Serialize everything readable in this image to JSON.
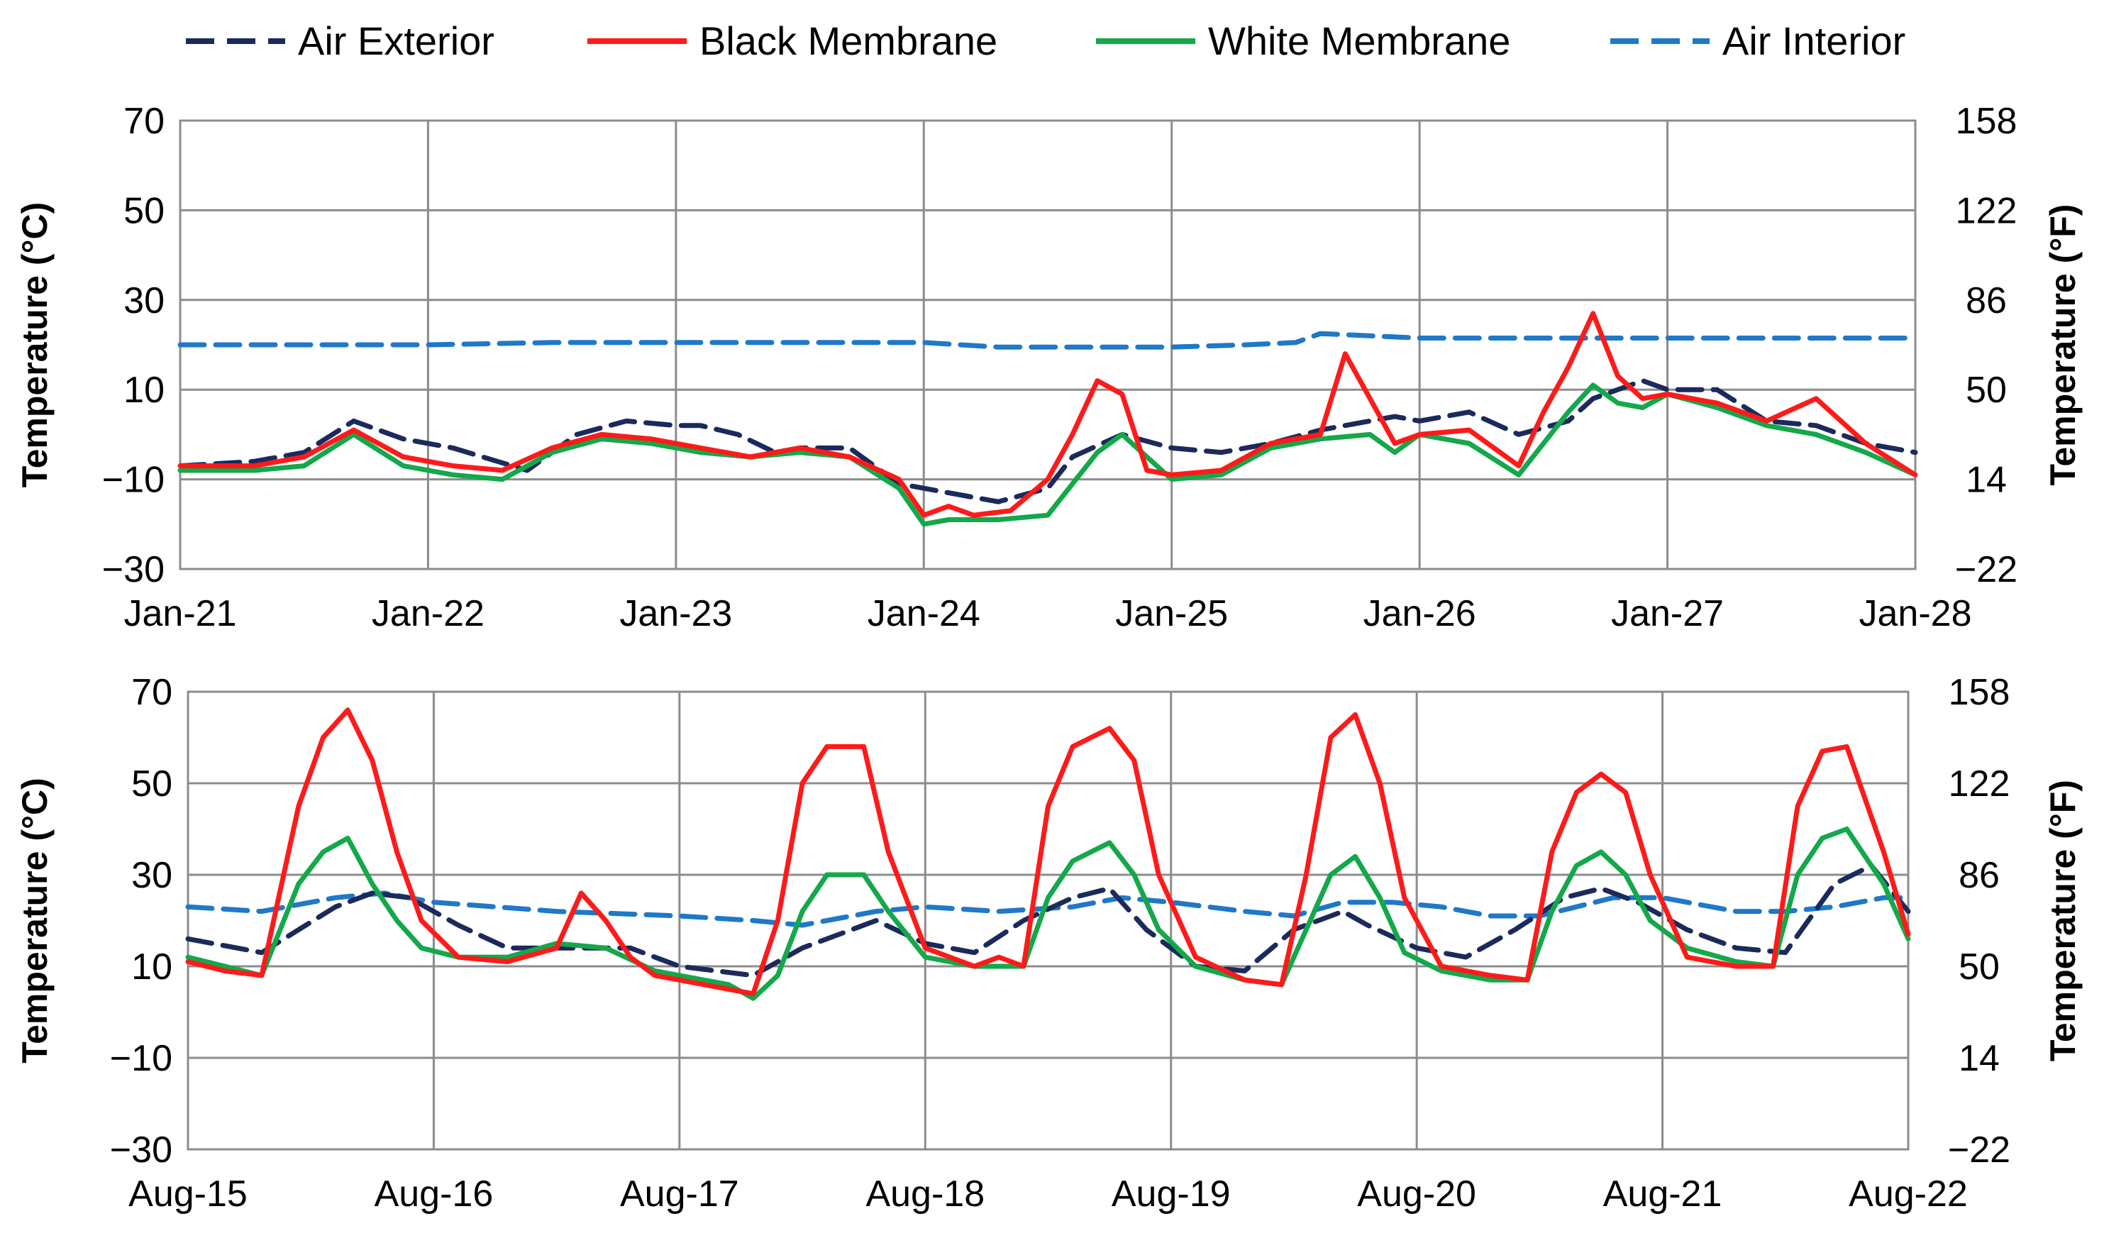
{
  "colors": {
    "air_exterior": "#1b2a5c",
    "black_membrane": "#ff1a1a",
    "white_membrane": "#14a84b",
    "air_interior": "#1f78c8",
    "grid": "#8c8c8c"
  },
  "legend": [
    {
      "name": "Air Exterior",
      "key": "air_exterior",
      "style": "dashed"
    },
    {
      "name": "Black Membrane",
      "key": "black_membrane",
      "style": "solid"
    },
    {
      "name": "White Membrane",
      "key": "white_membrane",
      "style": "solid"
    },
    {
      "name": "Air Interior",
      "key": "air_interior",
      "style": "dashed"
    }
  ],
  "chart_data": [
    {
      "type": "line",
      "title": "",
      "ylabel": "Temperature (°C)",
      "ylabel_right": "Temperature (°F)",
      "ylim": [
        -30,
        70
      ],
      "yticks": [
        "70",
        "50",
        "30",
        "10",
        "−10",
        "−30"
      ],
      "yticks_right": [
        "158",
        "122",
        "86",
        "50",
        "14",
        "−22"
      ],
      "xlim": [
        0,
        7
      ],
      "xticks": [
        "Jan-21",
        "Jan-22",
        "Jan-23",
        "Jan-24",
        "Jan-25",
        "Jan-26",
        "Jan-27",
        "Jan-28"
      ],
      "series": [
        {
          "name": "Air Exterior",
          "key": "air_exterior",
          "x": [
            0,
            0.3,
            0.5,
            0.7,
            0.9,
            1.1,
            1.4,
            1.6,
            1.8,
            2.0,
            2.1,
            2.25,
            2.4,
            2.5,
            2.7,
            2.9,
            3.0,
            3.1,
            3.3,
            3.5,
            3.6,
            3.8,
            4.0,
            4.2,
            4.4,
            4.6,
            4.8,
            4.9,
            5.0,
            5.2,
            5.4,
            5.6,
            5.7,
            5.9,
            6.0,
            6.2,
            6.4,
            6.6,
            6.8,
            7.0
          ],
          "y": [
            -7,
            -6,
            -4,
            3,
            -1,
            -3,
            -8,
            0,
            3,
            2,
            2,
            0,
            -4,
            -3,
            -3,
            -11,
            -12,
            -13,
            -15,
            -12,
            -5,
            0,
            -3,
            -4,
            -2,
            1,
            3,
            4,
            3,
            5,
            0,
            3,
            8,
            12,
            10,
            10,
            3,
            2,
            -2,
            -4
          ]
        },
        {
          "name": "Black Membrane",
          "key": "black_membrane",
          "x": [
            0,
            0.3,
            0.5,
            0.7,
            0.9,
            1.1,
            1.3,
            1.5,
            1.7,
            1.9,
            2.1,
            2.3,
            2.5,
            2.7,
            2.9,
            3.0,
            3.1,
            3.2,
            3.35,
            3.5,
            3.6,
            3.7,
            3.8,
            3.9,
            4.0,
            4.2,
            4.4,
            4.6,
            4.7,
            4.8,
            4.9,
            5.0,
            5.2,
            5.4,
            5.5,
            5.6,
            5.7,
            5.8,
            5.9,
            6.0,
            6.2,
            6.4,
            6.6,
            6.8,
            7.0
          ],
          "y": [
            -7,
            -7,
            -5,
            1,
            -5,
            -7,
            -8,
            -3,
            0,
            -1,
            -3,
            -5,
            -3,
            -5,
            -10,
            -18,
            -16,
            -18,
            -17,
            -10,
            0,
            12,
            9,
            -8,
            -9,
            -8,
            -2,
            0,
            18,
            8,
            -2,
            0,
            1,
            -7,
            5,
            15,
            27,
            13,
            8,
            9,
            7,
            3,
            8,
            -2,
            -9
          ]
        },
        {
          "name": "White Membrane",
          "key": "white_membrane",
          "x": [
            0,
            0.3,
            0.5,
            0.7,
            0.9,
            1.1,
            1.3,
            1.5,
            1.7,
            1.9,
            2.1,
            2.3,
            2.5,
            2.7,
            2.9,
            3.0,
            3.1,
            3.3,
            3.5,
            3.6,
            3.7,
            3.8,
            3.9,
            4.0,
            4.2,
            4.4,
            4.6,
            4.8,
            4.9,
            5.0,
            5.2,
            5.4,
            5.6,
            5.7,
            5.8,
            5.9,
            6.0,
            6.2,
            6.4,
            6.6,
            6.8,
            7.0
          ],
          "y": [
            -8,
            -8,
            -7,
            0,
            -7,
            -9,
            -10,
            -4,
            -1,
            -2,
            -4,
            -5,
            -4,
            -5,
            -12,
            -20,
            -19,
            -19,
            -18,
            -11,
            -4,
            0,
            -5,
            -10,
            -9,
            -3,
            -1,
            0,
            -4,
            0,
            -2,
            -9,
            5,
            11,
            7,
            6,
            9,
            6,
            2,
            0,
            -4,
            -9
          ]
        },
        {
          "name": "Air Interior",
          "key": "air_interior",
          "x": [
            0,
            0.5,
            1.0,
            1.5,
            2.0,
            2.5,
            3.0,
            3.3,
            3.6,
            4.0,
            4.3,
            4.5,
            4.6,
            5.0,
            5.5,
            6.0,
            6.5,
            7.0
          ],
          "y": [
            20,
            20,
            20,
            20.5,
            20.5,
            20.5,
            20.5,
            19.5,
            19.5,
            19.5,
            20,
            20.5,
            22.5,
            21.5,
            21.5,
            21.5,
            21.5,
            21.5
          ]
        }
      ]
    },
    {
      "type": "line",
      "title": "",
      "ylabel": "Temperature (°C)",
      "ylabel_right": "Temperature (°F)",
      "ylim": [
        -30,
        70
      ],
      "yticks": [
        "70",
        "50",
        "30",
        "10",
        "−10",
        "−30"
      ],
      "yticks_right": [
        "158",
        "122",
        "86",
        "50",
        "14",
        "−22"
      ],
      "xlim": [
        0,
        7
      ],
      "xticks": [
        "Aug-15",
        "Aug-16",
        "Aug-17",
        "Aug-18",
        "Aug-19",
        "Aug-20",
        "Aug-21",
        "Aug-22"
      ],
      "series": [
        {
          "name": "Air Exterior",
          "key": "air_exterior",
          "x": [
            0,
            0.3,
            0.6,
            0.75,
            0.9,
            1.1,
            1.3,
            1.6,
            1.8,
            2.0,
            2.3,
            2.5,
            2.7,
            2.8,
            3.0,
            3.2,
            3.4,
            3.6,
            3.75,
            3.9,
            4.1,
            4.3,
            4.5,
            4.7,
            4.8,
            5.0,
            5.2,
            5.4,
            5.6,
            5.75,
            5.9,
            6.1,
            6.3,
            6.5,
            6.7,
            6.85,
            7.0
          ],
          "y": [
            16,
            13,
            23,
            26,
            25,
            19,
            14,
            14,
            14,
            10,
            8,
            14,
            18,
            20,
            15,
            13,
            20,
            25,
            27,
            18,
            10,
            9,
            18,
            22,
            19,
            14,
            12,
            18,
            25,
            27,
            24,
            18,
            14,
            13,
            28,
            32,
            22
          ]
        },
        {
          "name": "Black Membrane",
          "key": "black_membrane",
          "x": [
            0,
            0.15,
            0.3,
            0.45,
            0.55,
            0.65,
            0.75,
            0.85,
            0.95,
            1.1,
            1.3,
            1.5,
            1.6,
            1.7,
            1.8,
            1.9,
            2.0,
            2.2,
            2.3,
            2.4,
            2.5,
            2.6,
            2.75,
            2.85,
            3.0,
            3.2,
            3.3,
            3.4,
            3.5,
            3.6,
            3.75,
            3.85,
            3.95,
            4.1,
            4.3,
            4.45,
            4.55,
            4.65,
            4.75,
            4.85,
            4.95,
            5.1,
            5.3,
            5.45,
            5.55,
            5.65,
            5.75,
            5.85,
            5.95,
            6.1,
            6.3,
            6.45,
            6.55,
            6.65,
            6.75,
            6.9,
            7.0
          ],
          "y": [
            11,
            9,
            8,
            45,
            60,
            66,
            55,
            35,
            20,
            12,
            11,
            14,
            26,
            20,
            12,
            8,
            7,
            5,
            4,
            20,
            50,
            58,
            58,
            35,
            14,
            10,
            12,
            10,
            45,
            58,
            62,
            55,
            30,
            12,
            7,
            6,
            30,
            60,
            65,
            50,
            25,
            10,
            8,
            7,
            35,
            48,
            52,
            48,
            30,
            12,
            10,
            10,
            45,
            57,
            58,
            35,
            17
          ]
        },
        {
          "name": "White Membrane",
          "key": "white_membrane",
          "x": [
            0,
            0.15,
            0.3,
            0.45,
            0.55,
            0.65,
            0.75,
            0.85,
            0.95,
            1.1,
            1.3,
            1.5,
            1.7,
            1.9,
            2.0,
            2.2,
            2.3,
            2.4,
            2.5,
            2.6,
            2.75,
            2.85,
            3.0,
            3.2,
            3.3,
            3.4,
            3.5,
            3.6,
            3.75,
            3.85,
            3.95,
            4.1,
            4.3,
            4.45,
            4.55,
            4.65,
            4.75,
            4.85,
            4.95,
            5.1,
            5.3,
            5.45,
            5.55,
            5.65,
            5.75,
            5.85,
            5.95,
            6.1,
            6.3,
            6.45,
            6.55,
            6.65,
            6.75,
            6.9,
            7.0
          ],
          "y": [
            12,
            10,
            8,
            28,
            35,
            38,
            28,
            20,
            14,
            12,
            12,
            15,
            14,
            9,
            8,
            6,
            3,
            8,
            22,
            30,
            30,
            22,
            12,
            10,
            10,
            10,
            25,
            33,
            37,
            30,
            18,
            10,
            7,
            6,
            18,
            30,
            34,
            25,
            13,
            9,
            7,
            7,
            22,
            32,
            35,
            30,
            20,
            14,
            11,
            10,
            30,
            38,
            40,
            28,
            16
          ]
        },
        {
          "name": "Air Interior",
          "key": "air_interior",
          "x": [
            0,
            0.3,
            0.6,
            0.8,
            1.0,
            1.5,
            2.0,
            2.3,
            2.5,
            2.8,
            3.0,
            3.3,
            3.6,
            3.8,
            4.0,
            4.3,
            4.5,
            4.7,
            4.9,
            5.1,
            5.3,
            5.5,
            5.8,
            6.0,
            6.3,
            6.5,
            6.7,
            6.9,
            7.0
          ],
          "y": [
            23,
            22,
            25,
            26,
            24,
            22,
            21,
            20,
            19,
            22,
            23,
            22,
            23,
            25,
            24,
            22,
            21,
            24,
            24,
            23,
            21,
            21,
            25,
            25,
            22,
            22,
            23,
            25,
            25
          ]
        }
      ]
    }
  ]
}
